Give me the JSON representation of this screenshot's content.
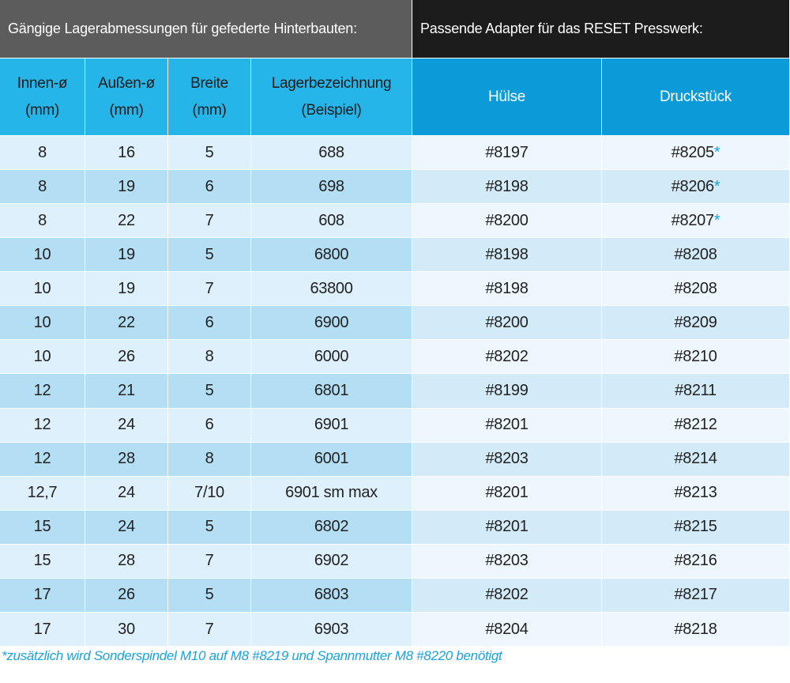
{
  "header": {
    "left_title": "Gängige Lagerabmessungen für gefederte Hinterbauten:",
    "right_title": "Passende Adapter für das RESET Presswerk:"
  },
  "table": {
    "columns": [
      [
        "Innen-ø",
        "(mm)"
      ],
      [
        "Außen-ø",
        "(mm)"
      ],
      [
        "Breite",
        "(mm)"
      ],
      [
        "Lagerbezeichnung",
        "(Beispiel)"
      ],
      [
        "Hülse"
      ],
      [
        "Druckstück"
      ]
    ],
    "rows": [
      [
        "8",
        "16",
        "5",
        "688",
        "#8197",
        {
          "text": "#8205",
          "mark": "*"
        }
      ],
      [
        "8",
        "19",
        "6",
        "698",
        "#8198",
        {
          "text": "#8206",
          "mark": "*"
        }
      ],
      [
        "8",
        "22",
        "7",
        "608",
        "#8200",
        {
          "text": "#8207",
          "mark": "*"
        }
      ],
      [
        "10",
        "19",
        "5",
        "6800",
        "#8198",
        "#8208"
      ],
      [
        "10",
        "19",
        "7",
        "63800",
        "#8198",
        "#8208"
      ],
      [
        "10",
        "22",
        "6",
        "6900",
        "#8200",
        "#8209"
      ],
      [
        "10",
        "26",
        "8",
        "6000",
        "#8202",
        "#8210"
      ],
      [
        "12",
        "21",
        "5",
        "6801",
        "#8199",
        "#8211"
      ],
      [
        "12",
        "24",
        "6",
        "6901",
        "#8201",
        "#8212"
      ],
      [
        "12",
        "28",
        "8",
        "6001",
        "#8203",
        "#8214"
      ],
      [
        "12,7",
        "24",
        "7/10",
        "6901 sm max",
        "#8201",
        "#8213"
      ],
      [
        "15",
        "24",
        "5",
        "6802",
        "#8201",
        "#8215"
      ],
      [
        "15",
        "28",
        "7",
        "6902",
        "#8203",
        "#8216"
      ],
      [
        "17",
        "26",
        "5",
        "6803",
        "#8202",
        "#8217"
      ],
      [
        "17",
        "30",
        "7",
        "6903",
        "#8204",
        "#8218"
      ]
    ]
  },
  "footnote": "*zusätzlich wird Sonderspindel M10 auf M8 #8219 und Spannmutter M8 #8220 benötigt"
}
